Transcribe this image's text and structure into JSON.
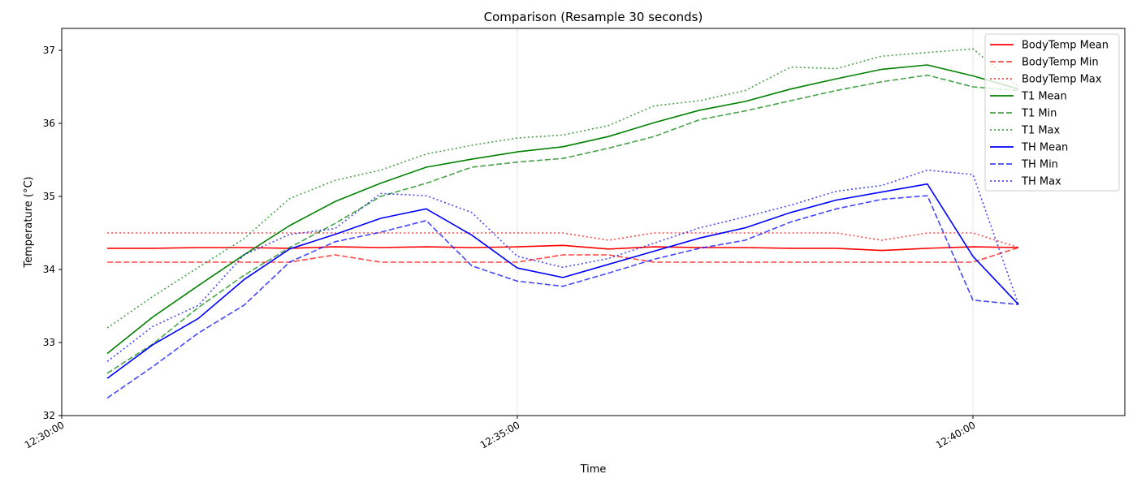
{
  "chart_data": {
    "type": "line",
    "title": "Comparison (Resample 30 seconds)",
    "xlabel": "Time",
    "ylabel": "Temperature (°C)",
    "xlim": [
      "12:30:00",
      "12:41:40"
    ],
    "ylim": [
      32,
      37.3
    ],
    "x_ticks": [
      "12:30:00",
      "12:35:00",
      "12:40:00"
    ],
    "y_ticks": [
      32,
      33,
      34,
      35,
      36,
      37
    ],
    "grid": "vertical at x ticks",
    "legend_position": "upper right",
    "x": [
      "12:30:30",
      "12:31:00",
      "12:31:30",
      "12:32:00",
      "12:32:30",
      "12:33:00",
      "12:33:30",
      "12:34:00",
      "12:34:30",
      "12:35:00",
      "12:35:30",
      "12:36:00",
      "12:36:30",
      "12:37:00",
      "12:37:30",
      "12:38:00",
      "12:38:30",
      "12:39:00",
      "12:39:30",
      "12:40:00",
      "12:40:30"
    ],
    "series": [
      {
        "name": "BodyTemp Mean",
        "color": "#ff0000",
        "dash": "solid",
        "values": [
          34.29,
          34.29,
          34.3,
          34.3,
          34.29,
          34.31,
          34.3,
          34.31,
          34.3,
          34.31,
          34.33,
          34.28,
          34.31,
          34.3,
          34.3,
          34.29,
          34.29,
          34.26,
          34.29,
          34.31,
          34.3
        ]
      },
      {
        "name": "BodyTemp Min",
        "color": "#ff0000",
        "dash": "dashed",
        "values": [
          34.1,
          34.1,
          34.1,
          34.1,
          34.1,
          34.2,
          34.1,
          34.1,
          34.1,
          34.1,
          34.2,
          34.2,
          34.1,
          34.1,
          34.1,
          34.1,
          34.1,
          34.1,
          34.1,
          34.1,
          34.3
        ]
      },
      {
        "name": "BodyTemp Max",
        "color": "#ff0000",
        "dash": "dotted",
        "values": [
          34.5,
          34.5,
          34.5,
          34.5,
          34.5,
          34.5,
          34.5,
          34.5,
          34.5,
          34.5,
          34.5,
          34.4,
          34.5,
          34.5,
          34.5,
          34.5,
          34.5,
          34.4,
          34.5,
          34.5,
          34.3
        ]
      },
      {
        "name": "T1 Mean",
        "color": "#008000",
        "dash": "solid",
        "values": [
          32.85,
          33.35,
          33.78,
          34.2,
          34.6,
          34.93,
          35.18,
          35.4,
          35.51,
          35.61,
          35.68,
          35.82,
          36.01,
          36.18,
          36.3,
          36.47,
          36.61,
          36.74,
          36.8,
          36.65,
          36.47
        ]
      },
      {
        "name": "T1 Min",
        "color": "#008000",
        "dash": "dashed",
        "values": [
          32.58,
          32.98,
          33.48,
          33.92,
          34.3,
          34.63,
          35.0,
          35.18,
          35.4,
          35.47,
          35.52,
          35.66,
          35.82,
          36.05,
          36.17,
          36.31,
          36.45,
          36.57,
          36.66,
          36.5,
          36.45
        ]
      },
      {
        "name": "T1 Max",
        "color": "#008000",
        "dash": "dotted",
        "values": [
          33.2,
          33.63,
          34.03,
          34.42,
          34.97,
          35.22,
          35.36,
          35.58,
          35.7,
          35.8,
          35.84,
          35.97,
          36.24,
          36.31,
          36.45,
          36.77,
          36.75,
          36.92,
          36.97,
          37.02,
          36.5
        ]
      },
      {
        "name": "TH Mean",
        "color": "#0000ff",
        "dash": "solid",
        "values": [
          32.51,
          32.97,
          33.33,
          33.86,
          34.28,
          34.48,
          34.7,
          34.83,
          34.47,
          34.02,
          33.89,
          34.07,
          34.25,
          34.43,
          34.57,
          34.78,
          34.95,
          35.06,
          35.17,
          34.18,
          33.52
        ]
      },
      {
        "name": "TH Min",
        "color": "#0000ff",
        "dash": "dashed",
        "values": [
          32.24,
          32.67,
          33.13,
          33.51,
          34.1,
          34.38,
          34.51,
          34.67,
          34.05,
          33.84,
          33.77,
          33.95,
          34.14,
          34.29,
          34.4,
          34.65,
          34.83,
          34.96,
          35.01,
          33.58,
          33.52
        ]
      },
      {
        "name": "TH Max",
        "color": "#0000ff",
        "dash": "dotted",
        "values": [
          32.74,
          33.22,
          33.51,
          34.2,
          34.48,
          34.56,
          35.04,
          35.01,
          34.78,
          34.18,
          34.03,
          34.15,
          34.36,
          34.57,
          34.72,
          34.88,
          35.07,
          35.15,
          35.36,
          35.3,
          33.52
        ]
      }
    ]
  }
}
